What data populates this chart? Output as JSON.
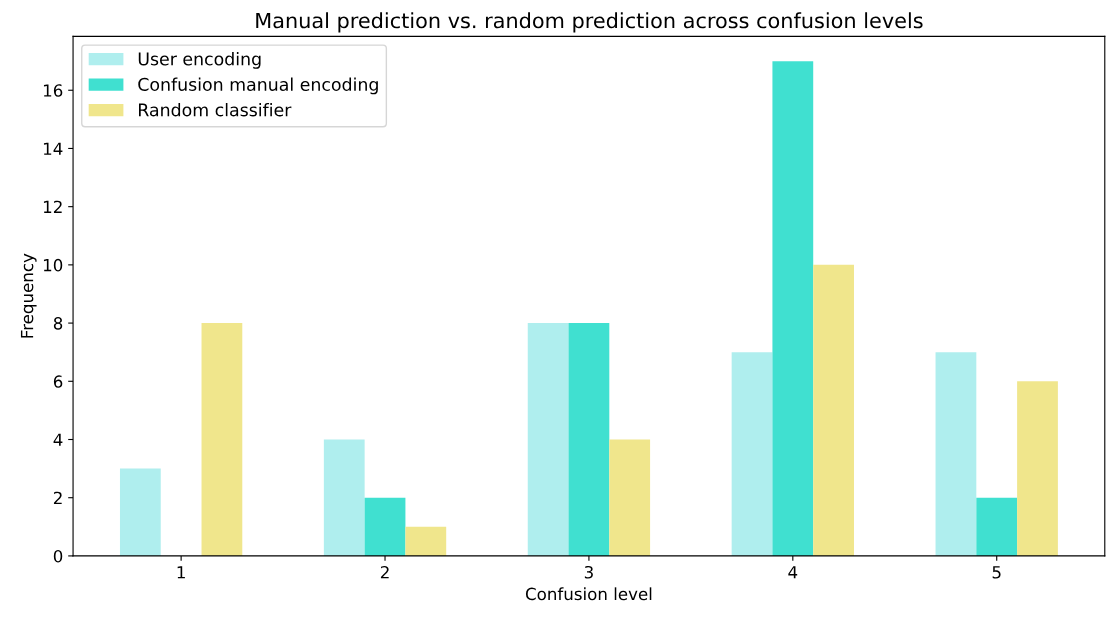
{
  "chart_data": {
    "type": "bar",
    "title": "Manual prediction vs. random prediction across confusion levels",
    "xlabel": "Confusion level",
    "ylabel": "Frequency",
    "categories": [
      "1",
      "2",
      "3",
      "4",
      "5"
    ],
    "series": [
      {
        "name": "User encoding",
        "color": "#afeeee",
        "values": [
          3,
          4,
          8,
          7,
          7
        ]
      },
      {
        "name": "Confusion manual encoding",
        "color": "#40e0d0",
        "values": [
          0,
          2,
          8,
          17,
          2
        ]
      },
      {
        "name": "Random classifier",
        "color": "#f0e68c",
        "values": [
          8,
          1,
          4,
          10,
          6
        ]
      }
    ],
    "ylim": [
      0,
      17.85
    ],
    "yticks": [
      0,
      2,
      4,
      6,
      8,
      10,
      12,
      14,
      16
    ],
    "grid": false,
    "legend": "top left"
  }
}
